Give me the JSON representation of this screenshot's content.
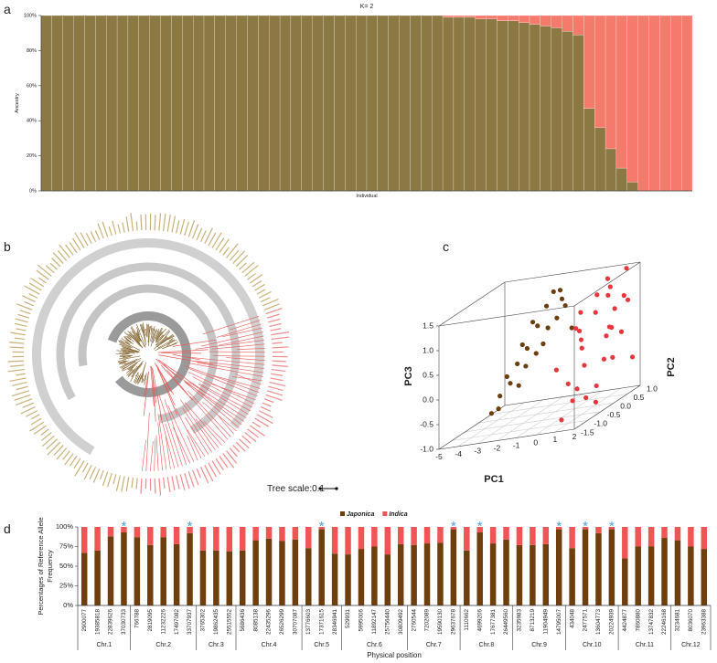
{
  "chart_data": [
    {
      "type": "bar",
      "panel": "a",
      "stacked": true,
      "title": "K= 2",
      "ylabel": "Ancestry",
      "xlabel": "Individual",
      "ylim": [
        0,
        100
      ],
      "yticks": [
        {
          "value": 0,
          "label": "0%"
        },
        {
          "value": 20,
          "label": "20%"
        },
        {
          "value": 40,
          "label": "40%"
        },
        {
          "value": 60,
          "label": "60%"
        },
        {
          "value": 80,
          "label": "80%"
        },
        {
          "value": 100,
          "label": "100%"
        }
      ],
      "series": [
        {
          "color": "#8c7842",
          "values": [
            100,
            100,
            100,
            100,
            100,
            100,
            100,
            100,
            100,
            100,
            100,
            100,
            100,
            100,
            100,
            100,
            100,
            100,
            100,
            100,
            100,
            100,
            100,
            100,
            100,
            100,
            100,
            100,
            100,
            100,
            100,
            100,
            100,
            100,
            100,
            100,
            100,
            99,
            99,
            99,
            98,
            98,
            97,
            97,
            96,
            95,
            94,
            93,
            91,
            89,
            47,
            36,
            24,
            13,
            5,
            0,
            0,
            0,
            0,
            0
          ]
        },
        {
          "color": "#f47a6c",
          "values": [
            0,
            0,
            0,
            0,
            0,
            0,
            0,
            0,
            0,
            0,
            0,
            0,
            0,
            0,
            0,
            0,
            0,
            0,
            0,
            0,
            0,
            0,
            0,
            0,
            0,
            0,
            0,
            0,
            0,
            0,
            0,
            0,
            0,
            0,
            0,
            0,
            0,
            1,
            1,
            1,
            2,
            2,
            3,
            3,
            4,
            5,
            6,
            7,
            9,
            11,
            53,
            64,
            76,
            87,
            95,
            100,
            100,
            100,
            100,
            100
          ]
        }
      ]
    },
    {
      "type": "tree",
      "panel": "b",
      "scale_label": "Tree scale:0.1"
    },
    {
      "type": "scatter3d",
      "panel": "c",
      "xlabel": "PC1",
      "ylabel": "PC2",
      "zlabel": "PC3",
      "grid": true,
      "xlim": [
        -5,
        2
      ],
      "xticks": [
        -5,
        -4,
        -3,
        -2,
        -1,
        0,
        1,
        2
      ],
      "ylim": [
        -1.5,
        1.0
      ],
      "yticks": [
        -1.5,
        {
          "value": -1,
          "label": "-1.0"
        },
        -0.5,
        {
          "value": 0,
          "label": "0.0"
        },
        0.5,
        {
          "value": 1,
          "label": "1.0"
        }
      ],
      "zlim": [
        -1.0,
        1.5
      ],
      "zticks": [
        {
          "value": -1,
          "label": "-1.0"
        },
        -0.5,
        {
          "value": 0,
          "label": "0.0"
        },
        0.5,
        {
          "value": 1,
          "label": "1.0"
        },
        1.5
      ],
      "series": [
        {
          "color": "#6b3e0e",
          "x": [
            -4.6,
            -4.3,
            -4.1,
            -3.9,
            -3.8,
            -3.6,
            -3.4,
            -3.3,
            -3.1,
            -3.0,
            -2.9,
            -2.7,
            -2.6,
            -2.5,
            -2.3,
            -2.2,
            -2.0,
            -1.9,
            -1.8,
            -1.6,
            -1.5,
            -1.4
          ],
          "y": [
            0.2,
            0.3,
            0.1,
            0.4,
            0.2,
            0.5,
            0.3,
            0.6,
            0.4,
            0.2,
            0.7,
            0.5,
            0.3,
            0.8,
            0.6,
            0.4,
            0.9,
            0.7,
            0.5,
            0.8,
            0.6,
            0.9
          ],
          "z": [
            -0.9,
            -0.6,
            -0.8,
            -0.4,
            -0.2,
            -0.5,
            0.0,
            0.2,
            -0.1,
            0.4,
            0.6,
            0.1,
            0.8,
            0.5,
            1.0,
            0.3,
            1.2,
            0.7,
            1.3,
            0.9,
            1.1,
            0.4
          ]
        },
        {
          "color": "#e8373c",
          "x": [
            1.2,
            1.5,
            1.0,
            1.7,
            1.3,
            0.9,
            1.6,
            1.4,
            1.1,
            1.8,
            1.2,
            1.5,
            1.0,
            1.7,
            1.3,
            0.8,
            1.6,
            1.4,
            1.1,
            1.9,
            1.2,
            1.5,
            1.0,
            1.3,
            1.6,
            1.4,
            1.1,
            1.7,
            1.2,
            1.5
          ],
          "y": [
            -1.4,
            -1.2,
            -1.0,
            -0.9,
            -0.7,
            -0.5,
            -0.4,
            -0.2,
            0.0,
            0.1,
            0.3,
            0.4,
            0.6,
            0.7,
            0.9,
            -1.3,
            -1.1,
            -0.8,
            -0.6,
            -0.3,
            -0.1,
            0.2,
            0.5,
            0.8,
            1.0,
            -1.0,
            -0.4,
            0.0,
            0.5,
            0.9
          ],
          "z": [
            -0.8,
            -0.5,
            -0.2,
            0.1,
            0.4,
            0.7,
            1.0,
            1.3,
            -0.6,
            -0.1,
            0.3,
            0.8,
            1.2,
            1.5,
            0.9,
            0.2,
            -0.3,
            0.6,
            1.1,
            0.0,
            -0.9,
            0.5,
            1.4,
            0.2,
            -0.4,
            0.9,
            -0.7,
            1.2,
            0.4,
            0.8
          ]
        }
      ]
    },
    {
      "type": "bar",
      "panel": "d",
      "stacked": true,
      "legend": "top",
      "ylabel": [
        "Percentages of Reference Allele",
        "Frequency"
      ],
      "xlabel": "Physical position",
      "ylim": [
        0,
        100
      ],
      "yticks": [
        {
          "value": 0,
          "label": "0%"
        },
        {
          "value": 25,
          "label": "25%"
        },
        {
          "value": 50,
          "label": "50%"
        },
        {
          "value": 75,
          "label": "75%"
        },
        {
          "value": 100,
          "label": "100%"
        }
      ],
      "categories": [
        "2900077",
        "19385818",
        "22839626",
        "37030733",
        "766788",
        "2819095",
        "11232226",
        "17497082",
        "33707937",
        "3765302",
        "19862435",
        "25515552",
        "5686436",
        "8085138",
        "22435296",
        "26526299",
        "30707087",
        "13776603",
        "17371615",
        "28346941",
        "529931",
        "5995006",
        "11892147",
        "25756440",
        "30809492",
        "2760544",
        "7202089",
        "19590130",
        "29637678",
        "1110662",
        "4699206",
        "17677381",
        "26449560",
        "3235983",
        "8713219",
        "11904949",
        "14795007",
        "434048",
        "2477571",
        "13604773",
        "20224939",
        "4424877",
        "7860880",
        "13747832",
        "22246168",
        "3234681",
        "8036070",
        "23963388"
      ],
      "category_groups": [
        "Chr.1",
        "Chr.1",
        "Chr.1",
        "Chr.1",
        "Chr.2",
        "Chr.2",
        "Chr.2",
        "Chr.2",
        "Chr.2",
        "Chr.3",
        "Chr.3",
        "Chr.3",
        "Chr.4",
        "Chr.4",
        "Chr.4",
        "Chr.4",
        "Chr.4",
        "Chr.5",
        "Chr.5",
        "Chr.5",
        "Chr.6",
        "Chr.6",
        "Chr.6",
        "Chr.6",
        "Chr.6",
        "Chr.7",
        "Chr.7",
        "Chr.7",
        "Chr.7",
        "Chr.8",
        "Chr.8",
        "Chr.8",
        "Chr.8",
        "Chr.9",
        "Chr.9",
        "Chr.9",
        "Chr.9",
        "Chr.10",
        "Chr.10",
        "Chr.10",
        "Chr.10",
        "Chr.11",
        "Chr.11",
        "Chr.11",
        "Chr.11",
        "Chr.12",
        "Chr.12",
        "Chr.12"
      ],
      "series": [
        {
          "name": "Japonica",
          "color": "#6e3f0d",
          "values": [
            67,
            70,
            88,
            93,
            87,
            77,
            87,
            78,
            92,
            70,
            70,
            69,
            70,
            83,
            85,
            82,
            84,
            73,
            97,
            66,
            65,
            72,
            75,
            65,
            78,
            77,
            79,
            80,
            97,
            70,
            93,
            79,
            84,
            77,
            77,
            78,
            97,
            73,
            97,
            92,
            97,
            60,
            75,
            75,
            86,
            83,
            75,
            72
          ]
        },
        {
          "name": "Indica",
          "color": "#f05555",
          "values": [
            33,
            30,
            12,
            7,
            13,
            23,
            13,
            22,
            8,
            30,
            30,
            31,
            30,
            17,
            15,
            18,
            16,
            27,
            3,
            34,
            35,
            28,
            25,
            35,
            22,
            23,
            21,
            20,
            3,
            30,
            7,
            21,
            16,
            23,
            23,
            22,
            3,
            27,
            3,
            8,
            3,
            40,
            25,
            25,
            14,
            17,
            25,
            28
          ]
        }
      ],
      "annotations": [
        {
          "text": "*",
          "category": "37030733"
        },
        {
          "text": "*",
          "category": "33707937"
        },
        {
          "text": "*",
          "category": "17371615"
        },
        {
          "text": "*",
          "category": "29637678"
        },
        {
          "text": "*",
          "category": "4699206"
        },
        {
          "text": "*",
          "category": "14795007"
        },
        {
          "text": "*",
          "category": "2477571"
        },
        {
          "text": "*",
          "category": "20224939"
        }
      ],
      "annotation_color": "#4aa3df"
    }
  ]
}
